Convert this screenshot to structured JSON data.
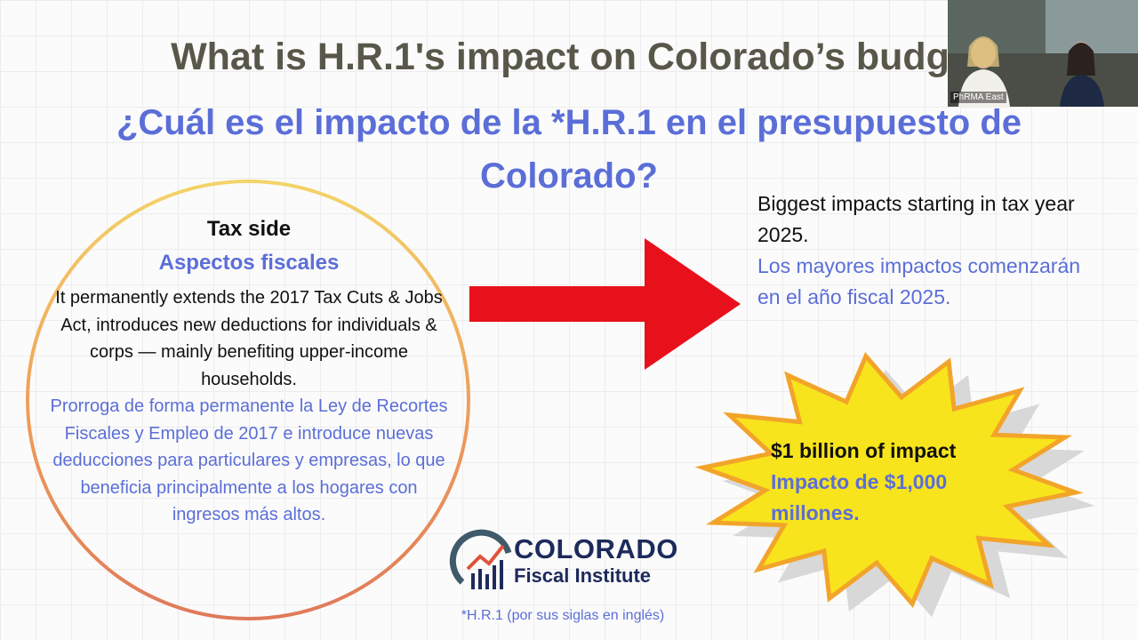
{
  "slide": {
    "title": "What is H.R.1's impact on Colorado’s budg",
    "subtitle": "¿Cuál es el impacto de la *H.R.1 en el presupuesto de Colorado?",
    "circle": {
      "heading": "Tax side",
      "heading_es": "Aspectos fiscales",
      "body": "It permanently extends the 2017 Tax Cuts & Jobs Act, introduces new deductions for individuals & corps — mainly benefiting upper-income households.",
      "body_es": "Prorroga de forma permanente la Ley de Recortes Fiscales y Empleo de 2017 e introduce nuevas deducciones para particulares y empresas, lo que beneficia principalmente a los hogares con ingresos más altos."
    },
    "right": {
      "text": "Biggest impacts starting in tax year 2025.",
      "text_es": "Los mayores impactos comenzarán en el año fiscal 2025."
    },
    "burst": {
      "text": "$1 billion of impact",
      "text_es": "Impacto de $1,000 millones."
    },
    "logo": {
      "name": "COLORADO",
      "sub": "Fiscal Institute"
    },
    "footnote": "*H.R.1 (por sus siglas en inglés)",
    "video": {
      "label": "PhRMA East"
    }
  }
}
